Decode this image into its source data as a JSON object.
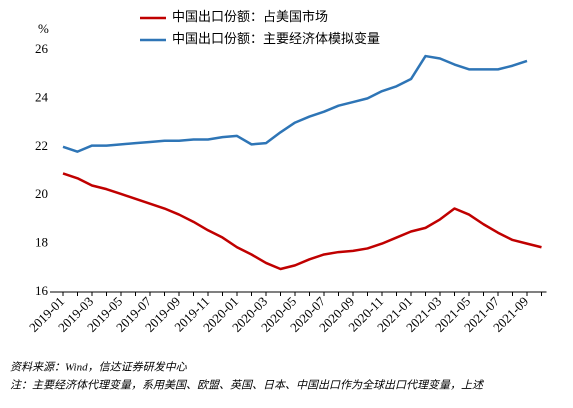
{
  "chart_data": {
    "type": "line",
    "y_unit": "%",
    "categories": [
      "2019-01",
      null,
      "2019-03",
      null,
      "2019-05",
      null,
      "2019-07",
      null,
      "2019-09",
      null,
      "2019-11",
      null,
      "2020-01",
      null,
      "2020-03",
      null,
      "2020-05",
      null,
      "2020-07",
      null,
      "2020-09",
      null,
      "2020-11",
      null,
      "2021-01",
      null,
      "2021-03",
      null,
      "2021-05",
      null,
      "2021-07",
      null,
      "2021-09",
      null
    ],
    "series": [
      {
        "name": "中国出口份额：占美国市场",
        "color": "#c00000",
        "values": [
          20.9,
          20.7,
          20.4,
          20.25,
          20.05,
          19.85,
          19.65,
          19.45,
          19.2,
          18.9,
          18.55,
          18.25,
          17.85,
          17.55,
          17.2,
          16.95,
          17.1,
          17.35,
          17.55,
          17.65,
          17.7,
          17.8,
          18.0,
          18.25,
          18.5,
          18.65,
          19.0,
          19.45,
          19.2,
          18.8,
          18.45,
          18.15,
          18.0,
          17.85
        ]
      },
      {
        "name": "中国出口份额：主要经济体模拟变量",
        "color": "#2e75b6",
        "values": [
          22.0,
          21.8,
          22.05,
          22.05,
          22.1,
          22.15,
          22.2,
          22.25,
          22.25,
          22.3,
          22.3,
          22.4,
          22.45,
          22.1,
          22.15,
          22.6,
          23.0,
          23.25,
          23.45,
          23.7,
          23.85,
          24.0,
          24.3,
          24.5,
          24.8,
          25.75,
          25.65,
          25.4,
          25.2,
          25.2,
          25.2,
          25.35,
          25.55,
          null
        ]
      }
    ],
    "ylim": [
      16,
      26
    ],
    "yticks": [
      16,
      18,
      20,
      22,
      24,
      26
    ],
    "source": "资料来源：Wind，信达证券研发中心",
    "note": "注：主要经济体代理变量，系用美国、欧盟、英国、日本、中国出口作为全球出口代理变量，上述"
  }
}
